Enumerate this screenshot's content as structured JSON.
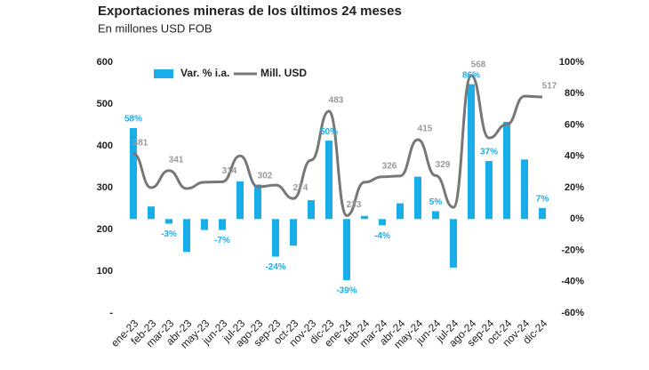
{
  "chart_data": {
    "type": "bar_line",
    "title": "Exportaciones mineras de los últimos 24 meses",
    "subtitle": "En millones USD FOB",
    "categories": [
      "ene-23",
      "feb-23",
      "mar-23",
      "abr-23",
      "may-23",
      "jun-23",
      "jul-23",
      "ago-23",
      "sep-23",
      "oct-23",
      "nov-23",
      "dic-23",
      "ene-24",
      "feb-24",
      "mar-24",
      "abr-24",
      "may-24",
      "jun-24",
      "jul-24",
      "ago-24",
      "sep-24",
      "oct-24",
      "nov-24",
      "dic-24"
    ],
    "series": [
      {
        "name": "Var. % i.a.",
        "color": "#1aaee8",
        "axis": "y2",
        "values": [
          58,
          8,
          -3,
          -21,
          -7,
          -7,
          24,
          22,
          -24,
          -17,
          12,
          50,
          -39,
          2,
          -4,
          10,
          27,
          5,
          -31,
          86,
          37,
          62,
          38,
          7
        ],
        "value_labels": [
          "58%",
          null,
          "-3%",
          null,
          null,
          "-7%",
          null,
          null,
          "-24%",
          null,
          null,
          "50%",
          "-39%",
          null,
          "-4%",
          null,
          null,
          "5%",
          null,
          "86%",
          "37%",
          null,
          null,
          "7%"
        ]
      },
      {
        "name": "Mill. USD",
        "color": "#777777",
        "axis": "y",
        "values": [
          381,
          300,
          341,
          298,
          313,
          314,
          376,
          302,
          306,
          274,
          366,
          483,
          233,
          313,
          326,
          328,
          415,
          329,
          253,
          568,
          419,
          451,
          519,
          517
        ],
        "value_labels": [
          "381",
          null,
          "341",
          null,
          null,
          "314",
          null,
          "302",
          null,
          "274",
          null,
          "483",
          "233",
          null,
          "326",
          null,
          "415",
          "329",
          null,
          "568",
          null,
          null,
          null,
          "517"
        ]
      }
    ],
    "ylim": [
      0,
      600
    ],
    "yticks": [
      {
        "value": 0,
        "label": "-"
      },
      100,
      200,
      300,
      400,
      500,
      600
    ],
    "y2lim": [
      -60,
      100
    ],
    "y2ticks": [
      {
        "value": -60,
        "label": "-60%"
      },
      {
        "value": -40,
        "label": "-40%"
      },
      {
        "value": -20,
        "label": "-20%"
      },
      {
        "value": 0,
        "label": "0%"
      },
      {
        "value": 20,
        "label": "20%"
      },
      {
        "value": 40,
        "label": "40%"
      },
      {
        "value": 60,
        "label": "60%"
      },
      {
        "value": 80,
        "label": "80%"
      },
      {
        "value": 100,
        "label": "100%"
      }
    ]
  }
}
